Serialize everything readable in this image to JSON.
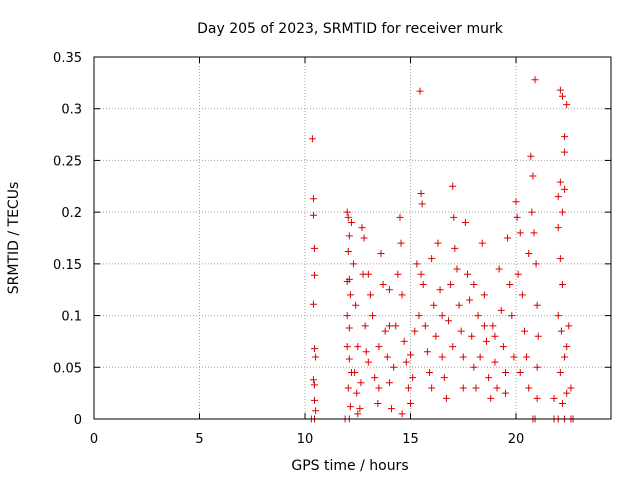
{
  "chart_data": {
    "type": "scatter",
    "title": "Day 205 of 2023, SRMTID for receiver murk",
    "xlabel": "GPS time / hours",
    "ylabel": "SRMTID / TECUs",
    "xlim": [
      0,
      24.5
    ],
    "ylim": [
      0,
      0.35
    ],
    "xticks": [
      0,
      5,
      10,
      15,
      20
    ],
    "yticks": [
      0,
      0.05,
      0.1,
      0.15,
      0.2,
      0.25,
      0.3,
      0.35
    ],
    "xtick_labels": [
      "0",
      "5",
      "10",
      "15",
      "20"
    ],
    "ytick_labels": [
      "0",
      "0.05",
      "0.1",
      "0.15",
      "0.2",
      "0.25",
      "0.3",
      "0.35"
    ],
    "grid": true,
    "marker": "+",
    "colors": {
      "series": "#dd0000",
      "grid": "#a0a0a0",
      "axes": "#000000"
    },
    "series": [
      {
        "points": [
          [
            10.35,
            0.271
          ],
          [
            10.4,
            0.213
          ],
          [
            10.4,
            0.197
          ],
          [
            10.45,
            0.165
          ],
          [
            10.45,
            0.139
          ],
          [
            10.4,
            0.111
          ],
          [
            10.45,
            0.068
          ],
          [
            10.5,
            0.06
          ],
          [
            10.4,
            0.038
          ],
          [
            10.45,
            0.033
          ],
          [
            10.45,
            0.018
          ],
          [
            10.5,
            0.008
          ],
          [
            10.3,
            0.0
          ],
          [
            10.45,
            0.0
          ],
          [
            11.9,
            0.0
          ],
          [
            12.1,
            0.0
          ],
          [
            12.0,
            0.2
          ],
          [
            12.05,
            0.195
          ],
          [
            12.2,
            0.19
          ],
          [
            12.1,
            0.177
          ],
          [
            12.05,
            0.162
          ],
          [
            12.0,
            0.133
          ],
          [
            12.1,
            0.135
          ],
          [
            12.15,
            0.12
          ],
          [
            12.0,
            0.1
          ],
          [
            12.1,
            0.088
          ],
          [
            12.0,
            0.07
          ],
          [
            12.1,
            0.058
          ],
          [
            12.2,
            0.045
          ],
          [
            12.05,
            0.03
          ],
          [
            12.15,
            0.012
          ],
          [
            12.3,
            0.15
          ],
          [
            12.4,
            0.11
          ],
          [
            12.5,
            0.07
          ],
          [
            12.35,
            0.045
          ],
          [
            12.45,
            0.025
          ],
          [
            12.6,
            0.01
          ],
          [
            12.7,
            0.185
          ],
          [
            12.8,
            0.175
          ],
          [
            12.75,
            0.14
          ],
          [
            12.85,
            0.09
          ],
          [
            12.9,
            0.065
          ],
          [
            12.65,
            0.035
          ],
          [
            13.0,
            0.055
          ],
          [
            13.1,
            0.12
          ],
          [
            13.2,
            0.1
          ],
          [
            13.3,
            0.04
          ],
          [
            13.45,
            0.015
          ],
          [
            13.5,
            0.07
          ],
          [
            13.6,
            0.16
          ],
          [
            13.7,
            0.13
          ],
          [
            13.8,
            0.085
          ],
          [
            13.9,
            0.06
          ],
          [
            14.0,
            0.035
          ],
          [
            14.1,
            0.01
          ],
          [
            14.2,
            0.05
          ],
          [
            14.3,
            0.09
          ],
          [
            14.4,
            0.14
          ],
          [
            14.5,
            0.195
          ],
          [
            14.55,
            0.17
          ],
          [
            14.6,
            0.12
          ],
          [
            14.7,
            0.075
          ],
          [
            14.8,
            0.055
          ],
          [
            14.9,
            0.03
          ],
          [
            15.0,
            0.015
          ],
          [
            15.1,
            0.04
          ],
          [
            15.2,
            0.085
          ],
          [
            15.3,
            0.15
          ],
          [
            15.4,
            0.1
          ],
          [
            15.45,
            0.317
          ],
          [
            15.5,
            0.218
          ],
          [
            15.55,
            0.208
          ],
          [
            15.6,
            0.13
          ],
          [
            15.7,
            0.09
          ],
          [
            15.8,
            0.065
          ],
          [
            15.9,
            0.045
          ],
          [
            16.0,
            0.155
          ],
          [
            16.1,
            0.11
          ],
          [
            16.2,
            0.08
          ],
          [
            16.3,
            0.17
          ],
          [
            16.4,
            0.125
          ],
          [
            16.5,
            0.06
          ],
          [
            16.6,
            0.04
          ],
          [
            16.7,
            0.02
          ],
          [
            16.8,
            0.095
          ],
          [
            16.9,
            0.13
          ],
          [
            17.0,
            0.225
          ],
          [
            17.05,
            0.195
          ],
          [
            17.1,
            0.165
          ],
          [
            17.2,
            0.145
          ],
          [
            17.3,
            0.11
          ],
          [
            17.4,
            0.085
          ],
          [
            17.5,
            0.06
          ],
          [
            17.6,
            0.19
          ],
          [
            17.7,
            0.14
          ],
          [
            17.8,
            0.115
          ],
          [
            17.9,
            0.08
          ],
          [
            18.0,
            0.05
          ],
          [
            18.1,
            0.03
          ],
          [
            18.2,
            0.1
          ],
          [
            18.3,
            0.06
          ],
          [
            18.4,
            0.17
          ],
          [
            18.5,
            0.12
          ],
          [
            18.6,
            0.075
          ],
          [
            18.7,
            0.04
          ],
          [
            18.8,
            0.02
          ],
          [
            18.9,
            0.09
          ],
          [
            19.0,
            0.055
          ],
          [
            19.1,
            0.03
          ],
          [
            19.2,
            0.145
          ],
          [
            19.3,
            0.105
          ],
          [
            19.4,
            0.07
          ],
          [
            19.5,
            0.045
          ],
          [
            19.6,
            0.175
          ],
          [
            19.7,
            0.13
          ],
          [
            19.8,
            0.1
          ],
          [
            19.9,
            0.06
          ],
          [
            20.0,
            0.21
          ],
          [
            20.05,
            0.195
          ],
          [
            20.1,
            0.14
          ],
          [
            20.2,
            0.18
          ],
          [
            20.3,
            0.12
          ],
          [
            20.4,
            0.085
          ],
          [
            20.5,
            0.06
          ],
          [
            20.6,
            0.16
          ],
          [
            20.7,
            0.254
          ],
          [
            20.75,
            0.2
          ],
          [
            20.8,
            0.235
          ],
          [
            20.85,
            0.18
          ],
          [
            20.9,
            0.328
          ],
          [
            20.95,
            0.15
          ],
          [
            21.0,
            0.11
          ],
          [
            21.05,
            0.08
          ],
          [
            21.0,
            0.05
          ],
          [
            20.6,
            0.03
          ],
          [
            20.8,
            0.0
          ],
          [
            20.9,
            0.0
          ],
          [
            21.8,
            0.0
          ],
          [
            22.0,
            0.0
          ],
          [
            22.1,
            0.318
          ],
          [
            22.2,
            0.312
          ],
          [
            22.4,
            0.304
          ],
          [
            22.3,
            0.273
          ],
          [
            22.3,
            0.258
          ],
          [
            22.1,
            0.229
          ],
          [
            22.3,
            0.222
          ],
          [
            22.0,
            0.215
          ],
          [
            22.2,
            0.2
          ],
          [
            22.0,
            0.185
          ],
          [
            22.1,
            0.155
          ],
          [
            22.2,
            0.13
          ],
          [
            22.0,
            0.1
          ],
          [
            22.15,
            0.085
          ],
          [
            22.3,
            0.06
          ],
          [
            22.1,
            0.045
          ],
          [
            22.4,
            0.025
          ],
          [
            22.2,
            0.015
          ],
          [
            22.3,
            0.0
          ],
          [
            22.6,
            0.0
          ],
          [
            22.7,
            0.0
          ],
          [
            22.5,
            0.09
          ],
          [
            22.4,
            0.07
          ],
          [
            22.6,
            0.03
          ],
          [
            21.8,
            0.02
          ],
          [
            12.5,
            0.005
          ],
          [
            13.5,
            0.03
          ],
          [
            14.0,
            0.09
          ],
          [
            14.6,
            0.005
          ],
          [
            15.0,
            0.062
          ],
          [
            16.5,
            0.1
          ],
          [
            17.5,
            0.03
          ],
          [
            18.5,
            0.09
          ],
          [
            19.5,
            0.025
          ],
          [
            20.2,
            0.045
          ],
          [
            21.0,
            0.02
          ],
          [
            16.0,
            0.03
          ],
          [
            17.0,
            0.07
          ],
          [
            18.0,
            0.13
          ],
          [
            19.0,
            0.08
          ],
          [
            13.0,
            0.14
          ],
          [
            14.0,
            0.125
          ],
          [
            15.5,
            0.14
          ]
        ]
      }
    ]
  }
}
